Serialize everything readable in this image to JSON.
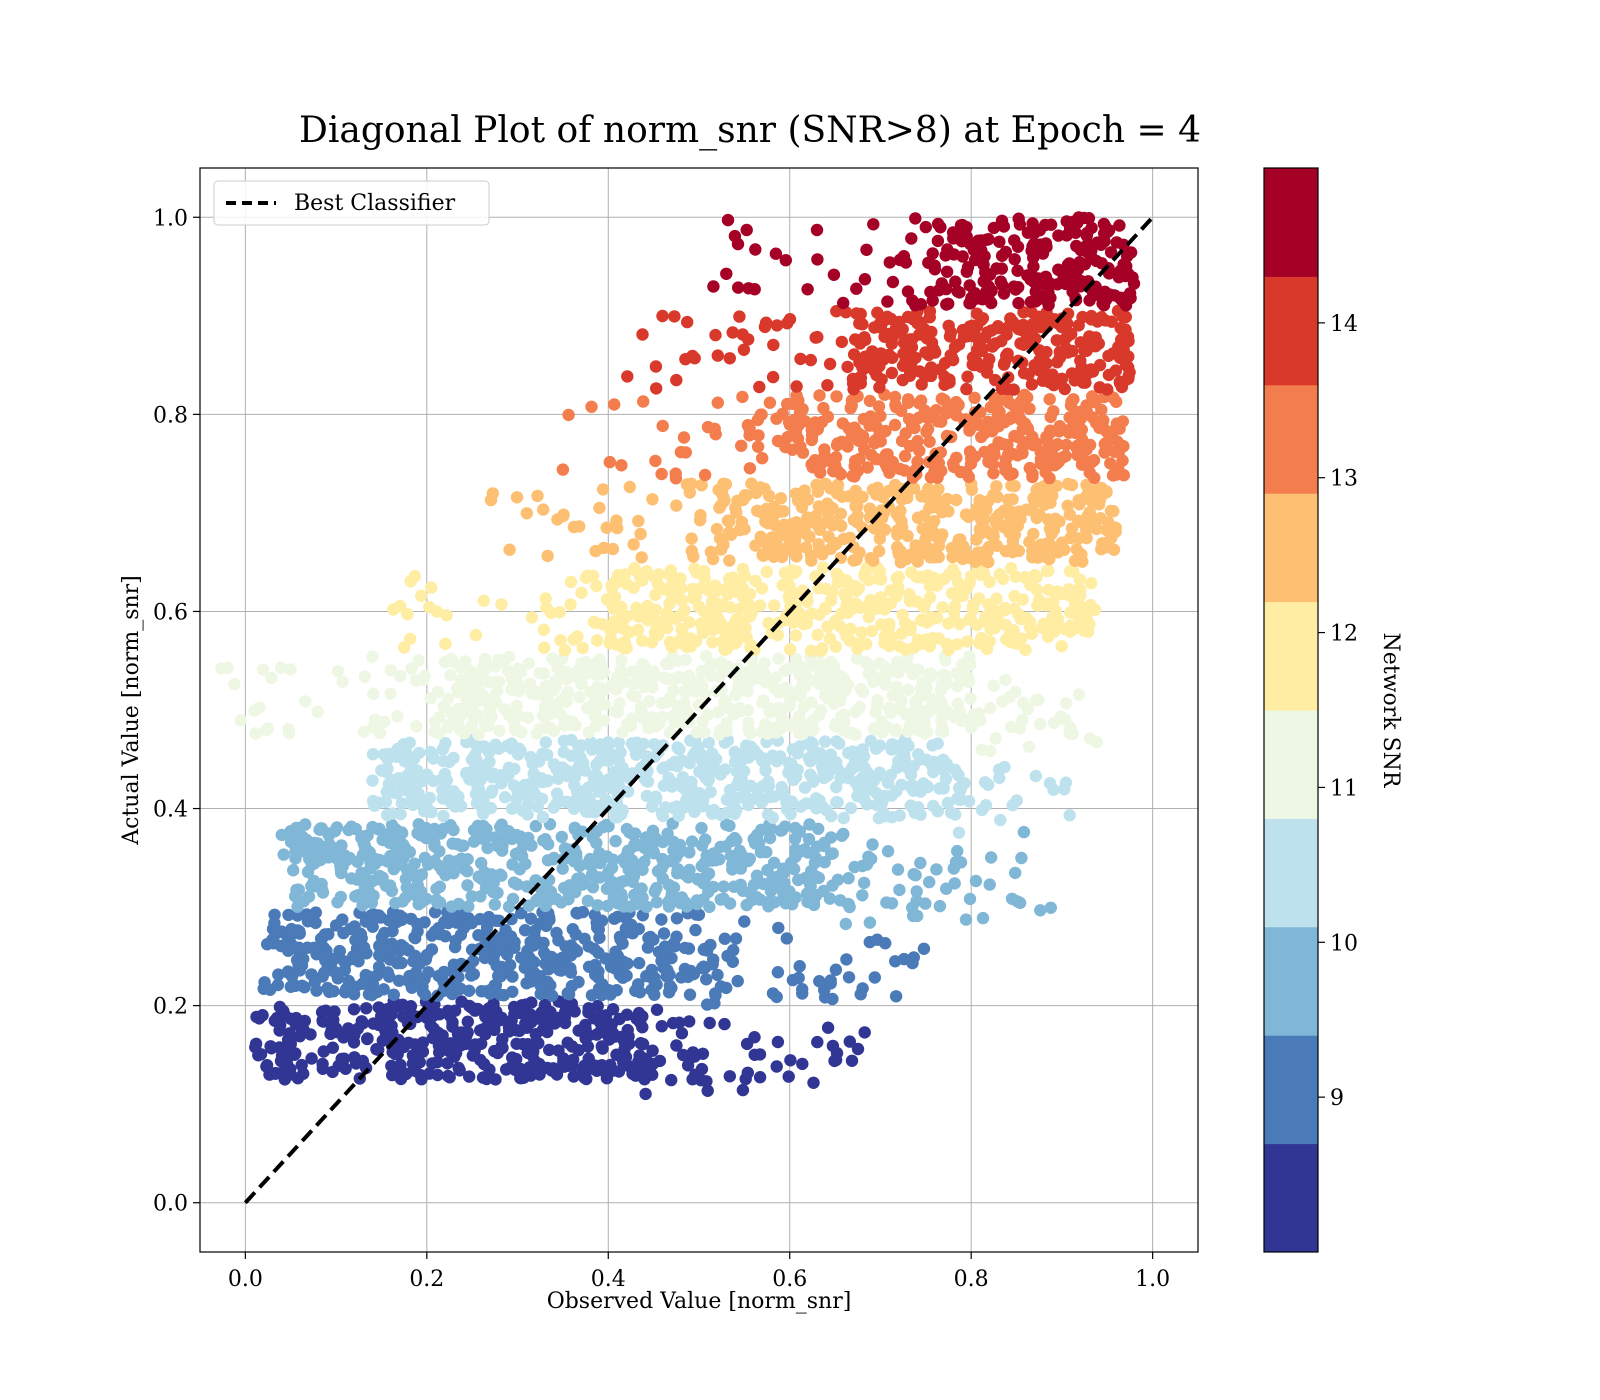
{
  "chart_data": {
    "type": "scatter",
    "title": "Diagonal Plot of norm_snr (SNR>8) at Epoch = 4",
    "xlabel": "Observed Value [norm_snr]",
    "ylabel": "Actual Value [norm_snr]",
    "xlim": [
      -0.05,
      1.05
    ],
    "ylim": [
      -0.05,
      1.05
    ],
    "xticks": [
      0.0,
      0.2,
      0.4,
      0.6,
      0.8,
      1.0
    ],
    "xtick_labels": [
      "0.0",
      "0.2",
      "0.4",
      "0.6",
      "0.8",
      "1.0"
    ],
    "yticks": [
      0.0,
      0.2,
      0.4,
      0.6,
      0.8,
      1.0
    ],
    "ytick_labels": [
      "0.0",
      "0.2",
      "0.4",
      "0.6",
      "0.8",
      "1.0"
    ],
    "grid": true,
    "legend": {
      "position": "upper left",
      "entries": [
        {
          "label": "Best Classifier",
          "style": "dashed",
          "color": "#000000"
        }
      ]
    },
    "reference_line": {
      "label": "Best Classifier",
      "x": [
        0.0,
        1.0
      ],
      "y": [
        0.0,
        1.0
      ]
    },
    "colorbar": {
      "label": "Network SNR",
      "range": [
        8,
        15
      ],
      "ticks": [
        9,
        10,
        11,
        12,
        13,
        14
      ],
      "tick_labels": [
        "9",
        "10",
        "11",
        "12",
        "13",
        "14"
      ],
      "colormap": "RdYlBu_r (10 discrete levels)"
    },
    "bands": [
      {
        "snr_min": 8.0,
        "snr_max": 8.7,
        "y_range": [
          0.125,
          0.205
        ],
        "x_core": [
          0.05,
          0.44
        ],
        "x_scatter_max": 0.69,
        "color": "#313695"
      },
      {
        "snr_min": 8.7,
        "snr_max": 9.4,
        "y_range": [
          0.21,
          0.295
        ],
        "x_core": [
          0.06,
          0.5
        ],
        "x_scatter_max": 0.75,
        "color": "#4a7ab7"
      },
      {
        "snr_min": 9.4,
        "snr_max": 10.1,
        "y_range": [
          0.3,
          0.385
        ],
        "x_core": [
          0.08,
          0.66
        ],
        "x_scatter_max": 0.89,
        "color": "#80b6d6"
      },
      {
        "snr_min": 10.1,
        "snr_max": 10.8,
        "y_range": [
          0.39,
          0.47
        ],
        "x_core": [
          0.18,
          0.77
        ],
        "x_scatter_max": 0.91,
        "color": "#bde2ee"
      },
      {
        "snr_min": 10.8,
        "snr_max": 11.5,
        "y_range": [
          0.475,
          0.555
        ],
        "x_core": [
          0.21,
          0.8
        ],
        "x_scatter_max": 0.94,
        "color": "#eef7e4"
      },
      {
        "snr_min": 11.5,
        "snr_max": 12.2,
        "y_range": [
          0.56,
          0.645
        ],
        "x_core": [
          0.4,
          0.92
        ],
        "x_scatter_max": 0.94,
        "color": "#feeda3"
      },
      {
        "snr_min": 12.2,
        "snr_max": 12.9,
        "y_range": [
          0.65,
          0.73
        ],
        "x_core": [
          0.52,
          0.95
        ],
        "x_scatter_max": 0.96,
        "color": "#fdbf71"
      },
      {
        "snr_min": 12.9,
        "snr_max": 13.6,
        "y_range": [
          0.735,
          0.82
        ],
        "x_core": [
          0.6,
          0.96
        ],
        "x_scatter_max": 0.96,
        "color": "#f47d4d"
      },
      {
        "snr_min": 13.6,
        "snr_max": 14.3,
        "y_range": [
          0.825,
          0.905
        ],
        "x_core": [
          0.67,
          0.97
        ],
        "x_scatter_max": 0.97,
        "color": "#d8392b"
      },
      {
        "snr_min": 14.3,
        "snr_max": 15.0,
        "y_range": [
          0.91,
          1.0
        ],
        "x_core": [
          0.76,
          0.97
        ],
        "x_scatter_max": 0.97,
        "color": "#a50026"
      }
    ]
  }
}
